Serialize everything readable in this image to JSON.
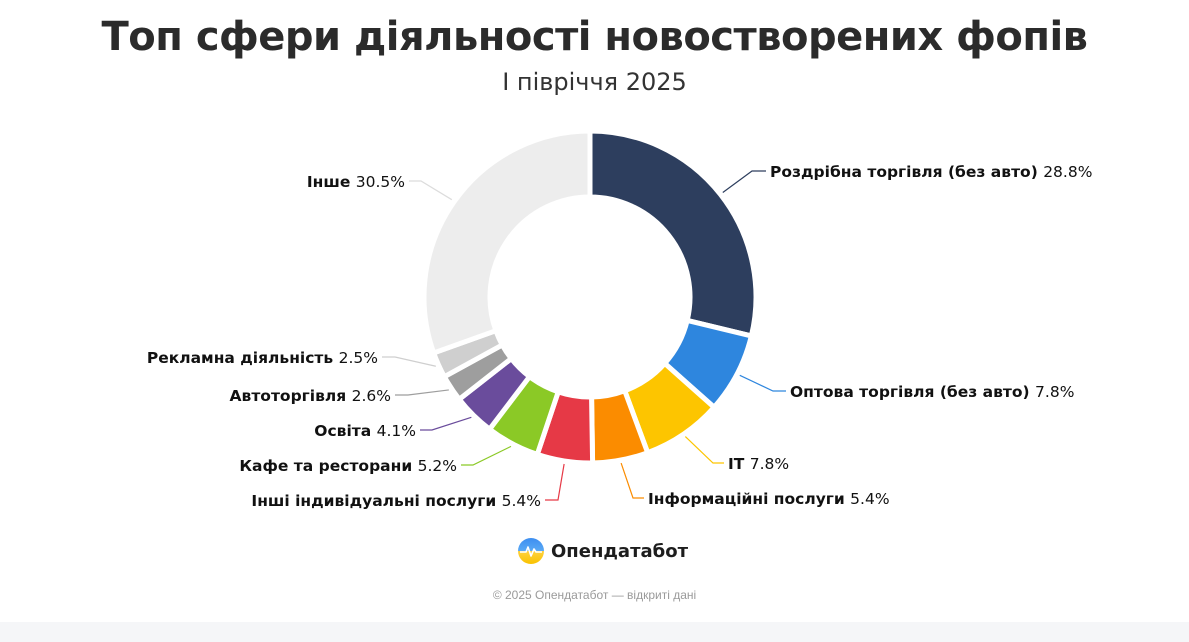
{
  "chart_data": {
    "type": "pie",
    "title": "Топ сфери діяльності новостворених фопів",
    "subtitle": "І півріччя 2025",
    "unit": "%",
    "slices": [
      {
        "label": "Роздрібна торгівля (без авто)",
        "value": 28.8,
        "value_text": "28.8%",
        "color": "#2d3e5e"
      },
      {
        "label": "Оптова торгівля (без авто)",
        "value": 7.8,
        "value_text": "7.8%",
        "color": "#2e86de"
      },
      {
        "label": "IT",
        "value": 7.8,
        "value_text": "7.8%",
        "color": "#fdc500"
      },
      {
        "label": "Інформаційні послуги",
        "value": 5.4,
        "value_text": "5.4%",
        "color": "#fb8c00"
      },
      {
        "label": "Інші індивідуальні послуги",
        "value": 5.4,
        "value_text": "5.4%",
        "color": "#e63946"
      },
      {
        "label": "Кафе та ресторани",
        "value": 5.2,
        "value_text": "5.2%",
        "color": "#8bc926"
      },
      {
        "label": "Освіта",
        "value": 4.1,
        "value_text": "4.1%",
        "color": "#6a4c9c"
      },
      {
        "label": "Автоторгівля",
        "value": 2.6,
        "value_text": "2.6%",
        "color": "#9e9e9e"
      },
      {
        "label": "Рекламна діяльність",
        "value": 2.5,
        "value_text": "2.5%",
        "color": "#cfcfcf"
      },
      {
        "label": "Інше",
        "value": 30.5,
        "value_text": "30.5%",
        "color": "#ededed"
      }
    ]
  },
  "brand": {
    "name": "Опендатабот",
    "icon": "opendatabot-logo-icon"
  },
  "footer": {
    "text": "© 2025 Опендатабот — відкриті дані"
  }
}
